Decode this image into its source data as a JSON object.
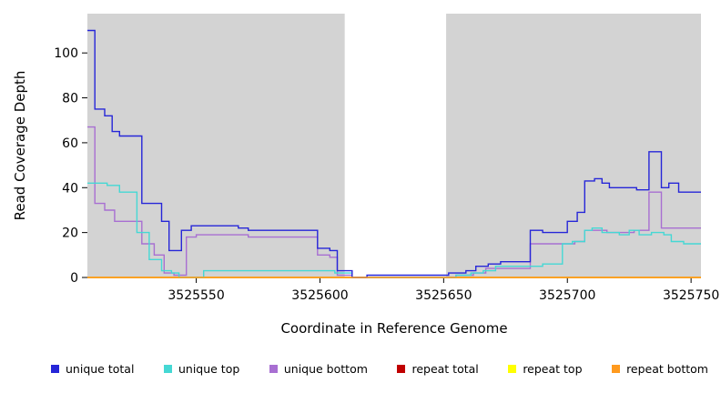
{
  "chart_data": {
    "type": "line",
    "style": "step-after",
    "title": "",
    "xlabel": "Coordinate in Reference Genome",
    "ylabel": "Read Coverage Depth",
    "xlim": [
      3525506,
      3525754
    ],
    "ylim": [
      0,
      117.5
    ],
    "xticks": [
      3525550,
      3525600,
      3525650,
      3525700,
      3525750
    ],
    "yticks": [
      0,
      20,
      40,
      60,
      80,
      100
    ],
    "grid": false,
    "legend_position": "bottom",
    "plot_bg_color": "#d3d3d3",
    "gap_region": {
      "x0": 3525610,
      "x1": 3525651,
      "color": "#ffffff"
    },
    "draw_order": [
      3,
      4,
      2,
      1,
      0,
      5
    ],
    "series": [
      {
        "name": "unique total",
        "color": "#2626d8",
        "points": [
          [
            3525506,
            110
          ],
          [
            3525509,
            75
          ],
          [
            3525513,
            72
          ],
          [
            3525516,
            65
          ],
          [
            3525519,
            63
          ],
          [
            3525528,
            33
          ],
          [
            3525536,
            25
          ],
          [
            3525539,
            12
          ],
          [
            3525544,
            21
          ],
          [
            3525548,
            23
          ],
          [
            3525567,
            22
          ],
          [
            3525571,
            21
          ],
          [
            3525599,
            13
          ],
          [
            3525604,
            12
          ],
          [
            3525607,
            3
          ],
          [
            3525613,
            0
          ],
          [
            3525619,
            1
          ],
          [
            3525652,
            2
          ],
          [
            3525659,
            3
          ],
          [
            3525663,
            5
          ],
          [
            3525668,
            6
          ],
          [
            3525673,
            7
          ],
          [
            3525685,
            21
          ],
          [
            3525690,
            20
          ],
          [
            3525700,
            25
          ],
          [
            3525704,
            29
          ],
          [
            3525707,
            43
          ],
          [
            3525711,
            44
          ],
          [
            3525714,
            42
          ],
          [
            3525717,
            40
          ],
          [
            3525728,
            39
          ],
          [
            3525733,
            56
          ],
          [
            3525738,
            40
          ],
          [
            3525741,
            42
          ],
          [
            3525745,
            38
          ]
        ]
      },
      {
        "name": "unique top",
        "color": "#45d8d4",
        "points": [
          [
            3525506,
            42
          ],
          [
            3525514,
            41
          ],
          [
            3525519,
            38
          ],
          [
            3525526,
            20
          ],
          [
            3525531,
            8
          ],
          [
            3525536,
            3
          ],
          [
            3525540,
            2
          ],
          [
            3525543,
            0
          ],
          [
            3525553,
            3
          ],
          [
            3525606,
            2
          ],
          [
            3525613,
            0
          ],
          [
            3525655,
            1
          ],
          [
            3525661,
            2
          ],
          [
            3525666,
            3
          ],
          [
            3525671,
            5
          ],
          [
            3525690,
            6
          ],
          [
            3525698,
            15
          ],
          [
            3525702,
            16
          ],
          [
            3525707,
            21
          ],
          [
            3525710,
            22
          ],
          [
            3525714,
            20
          ],
          [
            3525721,
            19
          ],
          [
            3525725,
            21
          ],
          [
            3525729,
            19
          ],
          [
            3525734,
            20
          ],
          [
            3525739,
            19
          ],
          [
            3525742,
            16
          ],
          [
            3525747,
            15
          ]
        ]
      },
      {
        "name": "unique bottom",
        "color": "#a86fd2",
        "points": [
          [
            3525506,
            67
          ],
          [
            3525509,
            33
          ],
          [
            3525513,
            30
          ],
          [
            3525517,
            25
          ],
          [
            3525528,
            15
          ],
          [
            3525533,
            10
          ],
          [
            3525537,
            2
          ],
          [
            3525541,
            1
          ],
          [
            3525546,
            18
          ],
          [
            3525550,
            19
          ],
          [
            3525567,
            19
          ],
          [
            3525571,
            18
          ],
          [
            3525599,
            10
          ],
          [
            3525604,
            9
          ],
          [
            3525607,
            1
          ],
          [
            3525613,
            0
          ],
          [
            3525655,
            1
          ],
          [
            3525662,
            2
          ],
          [
            3525667,
            4
          ],
          [
            3525685,
            15
          ],
          [
            3525703,
            16
          ],
          [
            3525707,
            21
          ],
          [
            3525716,
            20
          ],
          [
            3525727,
            21
          ],
          [
            3525733,
            38
          ],
          [
            3525738,
            22
          ],
          [
            3525745,
            22
          ]
        ]
      },
      {
        "name": "repeat total",
        "color": "#c00000",
        "points": [
          [
            3525506,
            0
          ]
        ]
      },
      {
        "name": "repeat top",
        "color": "#ffff00",
        "points": [
          [
            3525506,
            0
          ]
        ]
      },
      {
        "name": "repeat bottom",
        "color": "#ff9a1e",
        "points": [
          [
            3525506,
            0
          ]
        ]
      }
    ]
  }
}
